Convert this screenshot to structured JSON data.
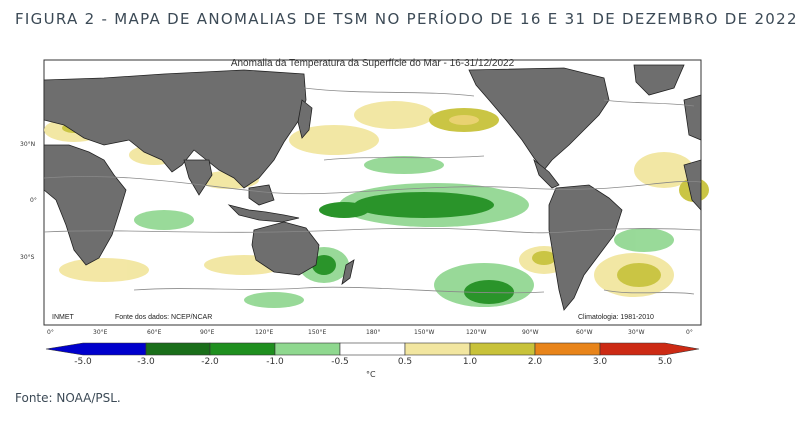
{
  "figure": {
    "title": "FIGURA 2 - MAPA DE ANOMALIAS DE TSM NO PERÍODO DE 16 E 31 DE DEZEMBRO DE 2022",
    "source": "Fonte: NOAA/PSL."
  },
  "map": {
    "title": "Anomalia da Temperatura da Superfície do Mar - 16-31/12/2022",
    "credit_left": "INMET",
    "credit_data": "Fonte dos dados: NCEP/NCAR",
    "climatology": "Climatologia: 1981-2010",
    "lat_labels": [
      "30°N",
      "0°",
      "30°S"
    ],
    "lon_labels": [
      "0°",
      "30°E",
      "60°E",
      "90°E",
      "120°E",
      "150°E",
      "180°",
      "150°W",
      "120°W",
      "90°W",
      "60°W",
      "30°W",
      "0°"
    ],
    "colors": {
      "land": "#6e6e6e",
      "ocean_neutral": "#ffffff",
      "anom_dark_green": "#1a7a1a",
      "anom_light_green": "#93d893",
      "anom_pale_yellow": "#f2e6a0",
      "anom_olive": "#c8c23a",
      "anom_orange": "#e88a1a",
      "anom_red": "#cc2a14"
    }
  },
  "colorbar": {
    "unit": "°C",
    "tick_labels": [
      "-5.0",
      "-3.0",
      "-2.0",
      "-1.0",
      "-0.5",
      "0.5",
      "1.0",
      "2.0",
      "3.0",
      "5.0"
    ],
    "bins": [
      {
        "color": "#0000cc"
      },
      {
        "color": "#1a6e1a"
      },
      {
        "color": "#1f8f1f"
      },
      {
        "color": "#8fd88f"
      },
      {
        "color": "#ffffff"
      },
      {
        "color": "#f2e6a0"
      },
      {
        "color": "#c8c23a"
      },
      {
        "color": "#e8841a"
      },
      {
        "color": "#cc2a14"
      }
    ]
  }
}
